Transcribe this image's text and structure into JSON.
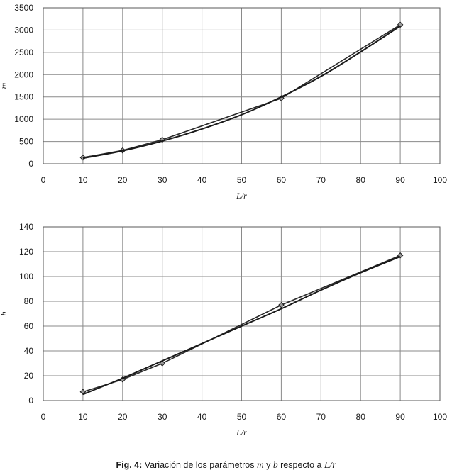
{
  "chart_data": [
    {
      "type": "line",
      "title": "",
      "xlabel": "L/r",
      "ylabel": "m",
      "xlim": [
        0,
        100
      ],
      "ylim": [
        0,
        3500
      ],
      "xticks": [
        0,
        10,
        20,
        30,
        40,
        50,
        60,
        70,
        80,
        90,
        100
      ],
      "yticks": [
        0,
        500,
        1000,
        1500,
        2000,
        2500,
        3000,
        3500
      ],
      "grid": true,
      "series": [
        {
          "marker": "diamond",
          "x": [
            10,
            20,
            30,
            60,
            90
          ],
          "values": [
            140,
            300,
            540,
            1470,
            3120
          ]
        },
        {
          "marker": "none",
          "x": [
            10,
            20,
            30,
            40,
            50,
            60,
            70,
            80,
            90
          ],
          "values": [
            125,
            290,
            510,
            780,
            1100,
            1500,
            1960,
            2510,
            3090
          ]
        }
      ]
    },
    {
      "type": "line",
      "title": "",
      "xlabel": "L/r",
      "ylabel": "b",
      "xlim": [
        0,
        100
      ],
      "ylim": [
        0,
        140
      ],
      "xticks": [
        0,
        10,
        20,
        30,
        40,
        50,
        60,
        70,
        80,
        90,
        100
      ],
      "yticks": [
        0,
        20,
        40,
        60,
        80,
        100,
        120,
        140
      ],
      "grid": true,
      "series": [
        {
          "marker": "diamond",
          "x": [
            10,
            20,
            30,
            60,
            90
          ],
          "values": [
            7,
            17,
            30,
            77,
            117
          ]
        },
        {
          "marker": "none",
          "x": [
            10,
            20,
            30,
            40,
            50,
            60,
            70,
            80,
            90
          ],
          "values": [
            5,
            18,
            32,
            46,
            60,
            74,
            89,
            103,
            116
          ]
        }
      ]
    }
  ],
  "caption": {
    "label": "Fig. 4:",
    "text_before": " Variación de los parámetros ",
    "var1": "m",
    "text_mid": " y ",
    "var2": "b",
    "text_after": " respecto a ",
    "var3": "L/r"
  }
}
